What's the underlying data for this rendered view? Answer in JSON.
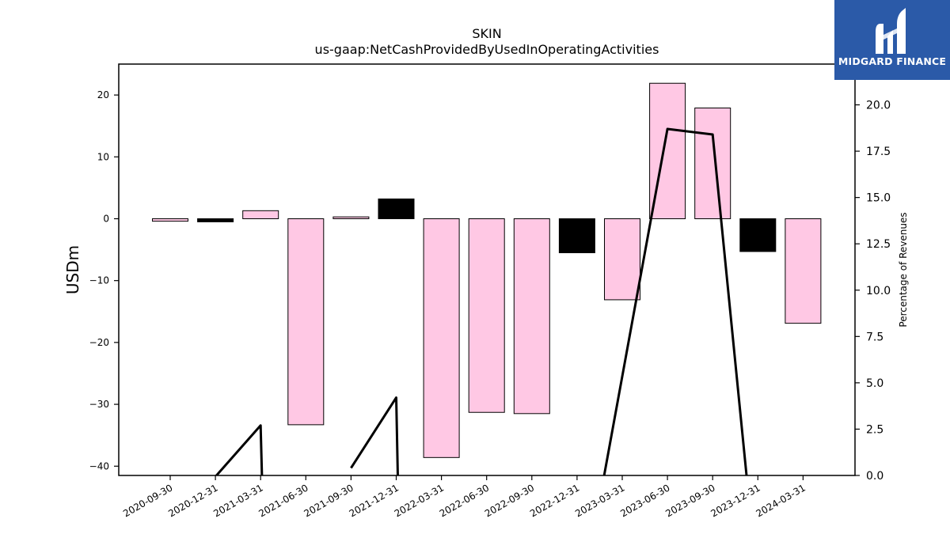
{
  "chart_data": {
    "type": "bar",
    "title": "SKIN",
    "subtitle": "us-gaap:NetCashProvidedByUsedInOperatingActivities",
    "ylabel": "USDm",
    "y2label": "Percentage of Revenues",
    "categories": [
      "2020-09-30",
      "2020-12-31",
      "2021-03-31",
      "2021-06-30",
      "2021-09-30",
      "2021-12-31",
      "2022-03-31",
      "2022-06-30",
      "2022-09-30",
      "2022-12-31",
      "2023-03-31",
      "2023-06-30",
      "2023-09-30",
      "2023-12-31",
      "2024-03-31"
    ],
    "series": [
      {
        "kind": "bar",
        "values": [
          -0.4,
          -0.5,
          1.3,
          -33.3,
          0.3,
          3.2,
          -38.6,
          -31.3,
          -31.5,
          -5.5,
          -13.1,
          21.9,
          17.9,
          -5.3,
          -16.9
        ],
        "colors": [
          "#ffc8e4",
          "#000000",
          "#ffc8e4",
          "#ffc8e4",
          "#ffc8e4",
          "#000000",
          "#ffc8e4",
          "#ffc8e4",
          "#ffc8e4",
          "#000000",
          "#ffc8e4",
          "#ffc8e4",
          "#ffc8e4",
          "#000000",
          "#ffc8e4"
        ]
      },
      {
        "kind": "line",
        "axis": "right",
        "color": "#000000",
        "segments": [
          [
            [
              0.3,
              -2.0
            ],
            [
              2.0,
              2.7
            ],
            [
              2.05,
              -2.0
            ]
          ],
          [
            [
              4.0,
              0.4
            ],
            [
              5.0,
              4.2
            ],
            [
              5.05,
              -2.0
            ]
          ],
          [
            [
              9.45,
              -2.0
            ],
            [
              11.0,
              18.7
            ],
            [
              12.0,
              18.4
            ],
            [
              12.75,
              0.0
            ]
          ]
        ]
      }
    ],
    "ylim": [
      -41.5,
      25
    ],
    "y2lim": [
      0,
      22.2
    ],
    "yticks": [
      20,
      10,
      0,
      -10,
      -20,
      -30,
      -40
    ],
    "y2ticks": [
      0,
      2.5,
      5,
      7.5,
      10,
      12.5,
      15,
      17.5,
      20
    ],
    "grid": false
  },
  "logo": {
    "text": "MIDGARD FINANCE"
  }
}
